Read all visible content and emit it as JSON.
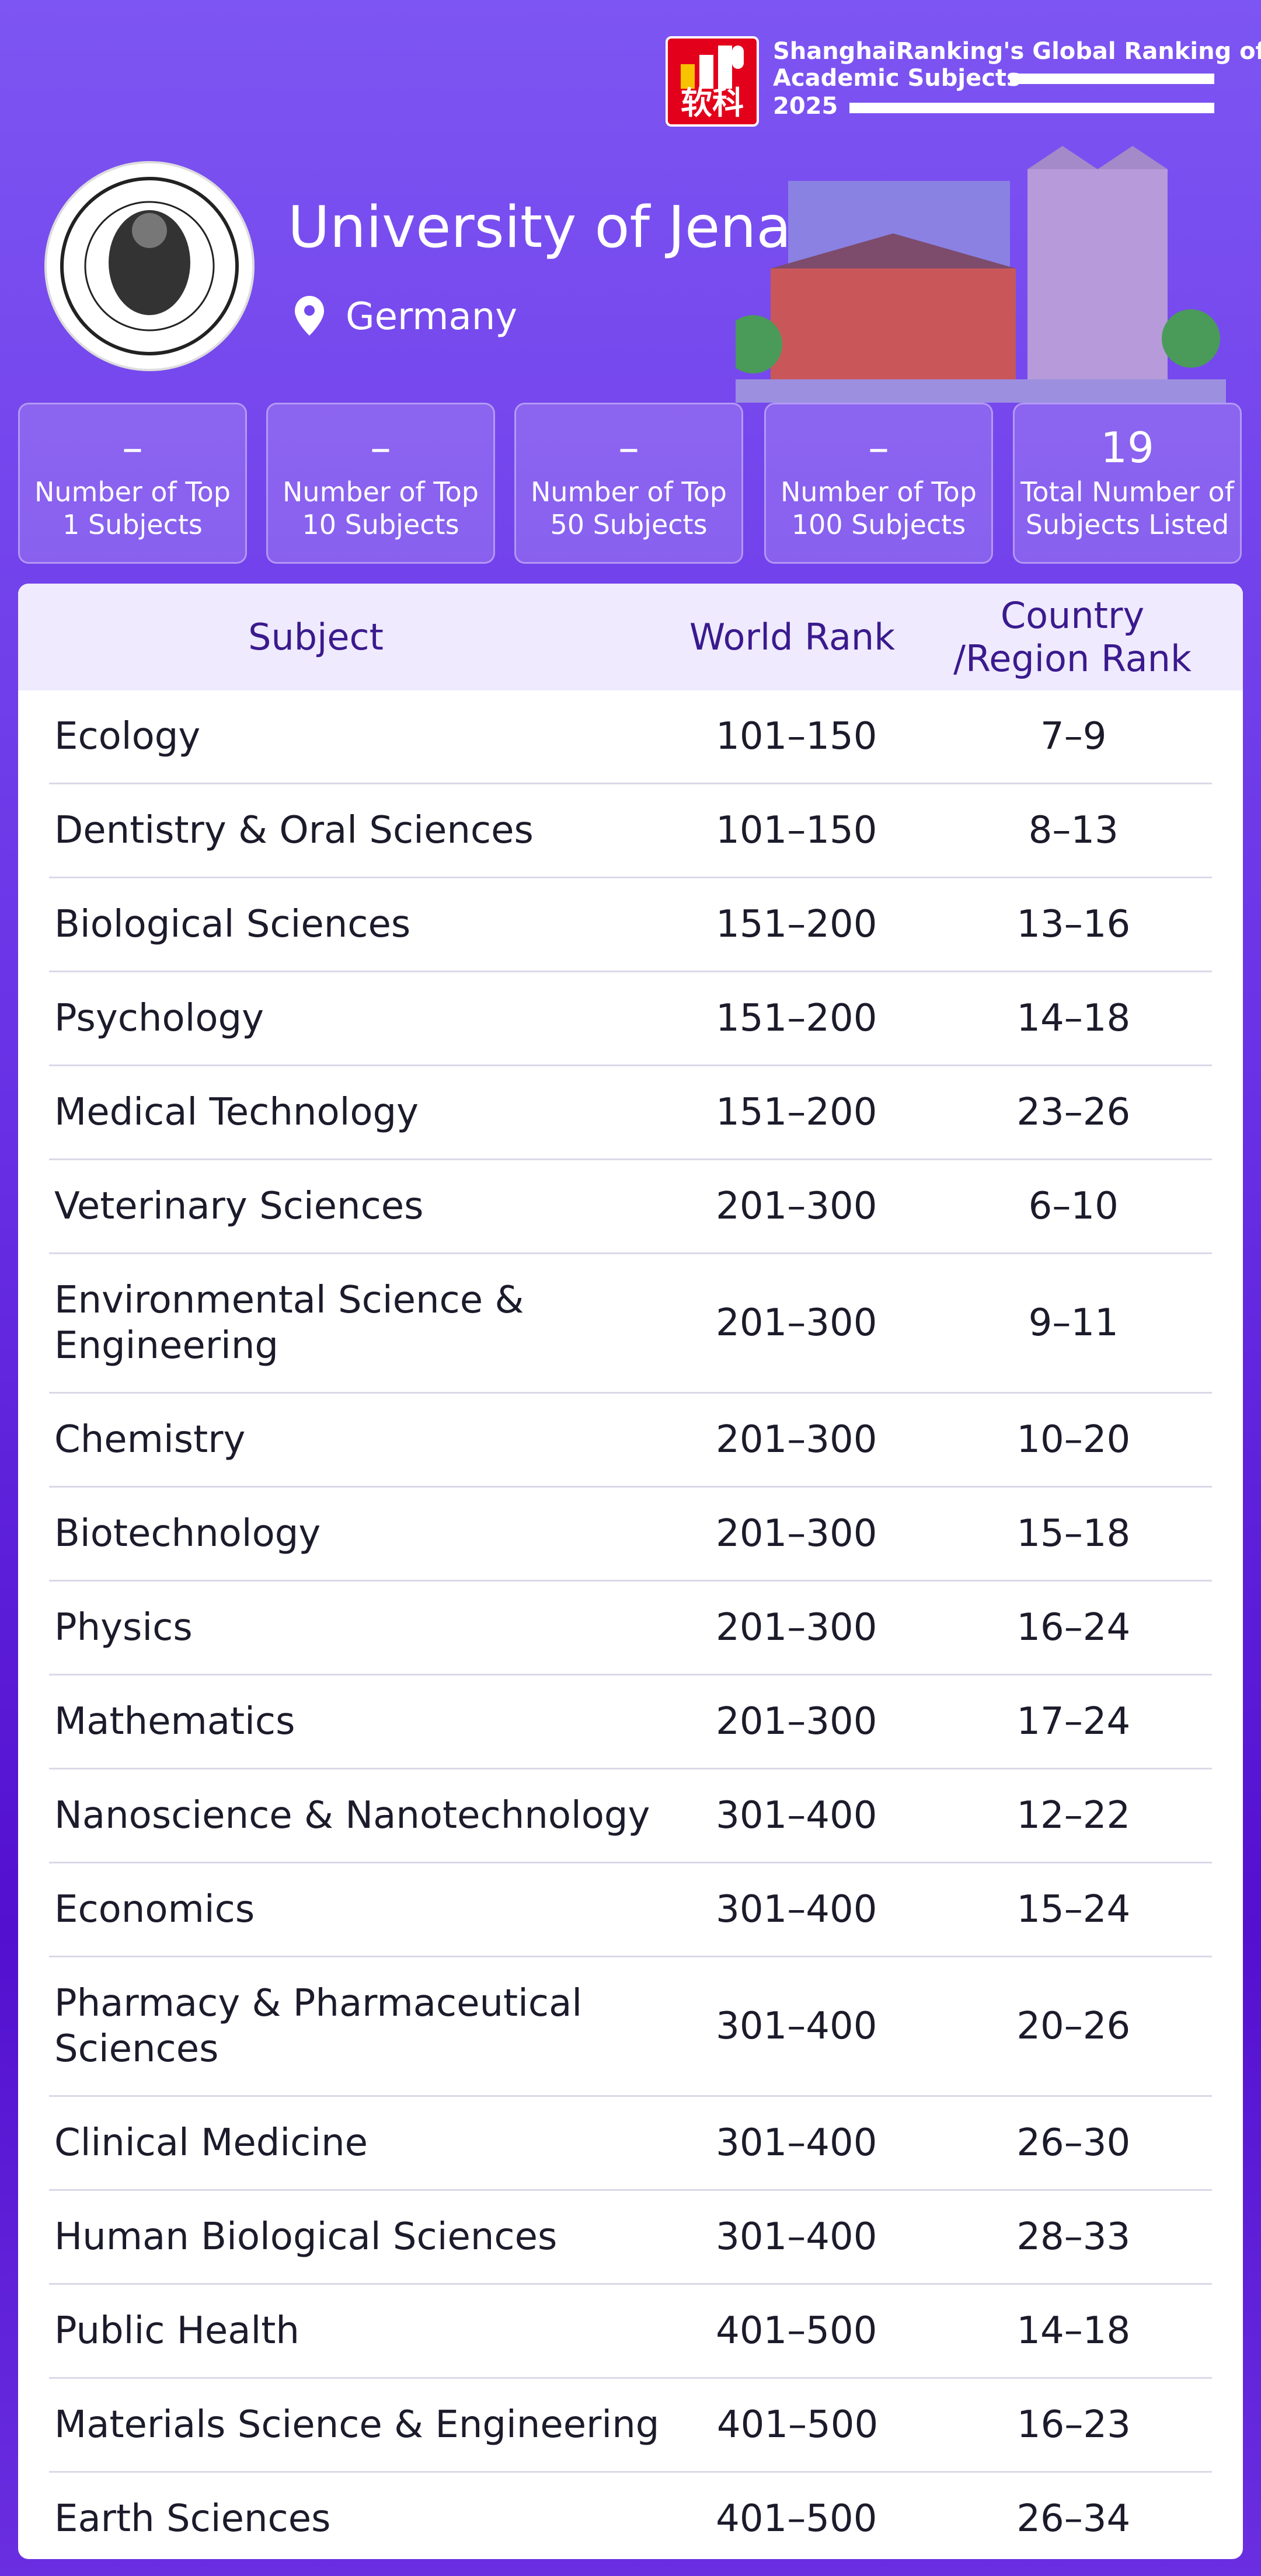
{
  "header": {
    "logo_text": "软科",
    "brand_lines": [
      "ShanghaiRanking's Global Ranking of",
      "Academic Subjects",
      "2025"
    ]
  },
  "university": {
    "name": "University of Jena",
    "country": "Germany"
  },
  "stats": [
    {
      "value": "–",
      "label": "Number of Top\n1 Subjects"
    },
    {
      "value": "–",
      "label": "Number of Top\n10 Subjects"
    },
    {
      "value": "–",
      "label": "Number of Top\n50 Subjects"
    },
    {
      "value": "–",
      "label": "Number of Top\n100 Subjects"
    },
    {
      "value": "19",
      "label": "Total Number of\nSubjects Listed"
    }
  ],
  "table": {
    "columns": [
      "Subject",
      "World Rank",
      "Country\n/Region Rank"
    ],
    "rows": [
      [
        "Ecology",
        "101–150",
        "7–9"
      ],
      [
        "Dentistry & Oral Sciences",
        "101–150",
        "8–13"
      ],
      [
        "Biological Sciences",
        "151–200",
        "13–16"
      ],
      [
        "Psychology",
        "151–200",
        "14–18"
      ],
      [
        "Medical Technology",
        "151–200",
        "23–26"
      ],
      [
        "Veterinary Sciences",
        "201–300",
        "6–10"
      ],
      [
        "Environmental Science &\nEngineering",
        "201–300",
        "9–11"
      ],
      [
        "Chemistry",
        "201–300",
        "10–20"
      ],
      [
        "Biotechnology",
        "201–300",
        "15–18"
      ],
      [
        "Physics",
        "201–300",
        "16–24"
      ],
      [
        "Mathematics",
        "201–300",
        "17–24"
      ],
      [
        "Nanoscience & Nanotechnology",
        "301–400",
        "12–22"
      ],
      [
        "Economics",
        "301–400",
        "15–24"
      ],
      [
        "Pharmacy & Pharmaceutical\nSciences",
        "301–400",
        "20–26"
      ],
      [
        "Clinical Medicine",
        "301–400",
        "26–30"
      ],
      [
        "Human Biological Sciences",
        "301–400",
        "28–33"
      ],
      [
        "Public Health",
        "401–500",
        "14–18"
      ],
      [
        "Materials Science & Engineering",
        "401–500",
        "16–23"
      ],
      [
        "Earth Sciences",
        "401–500",
        "26–34"
      ]
    ]
  }
}
